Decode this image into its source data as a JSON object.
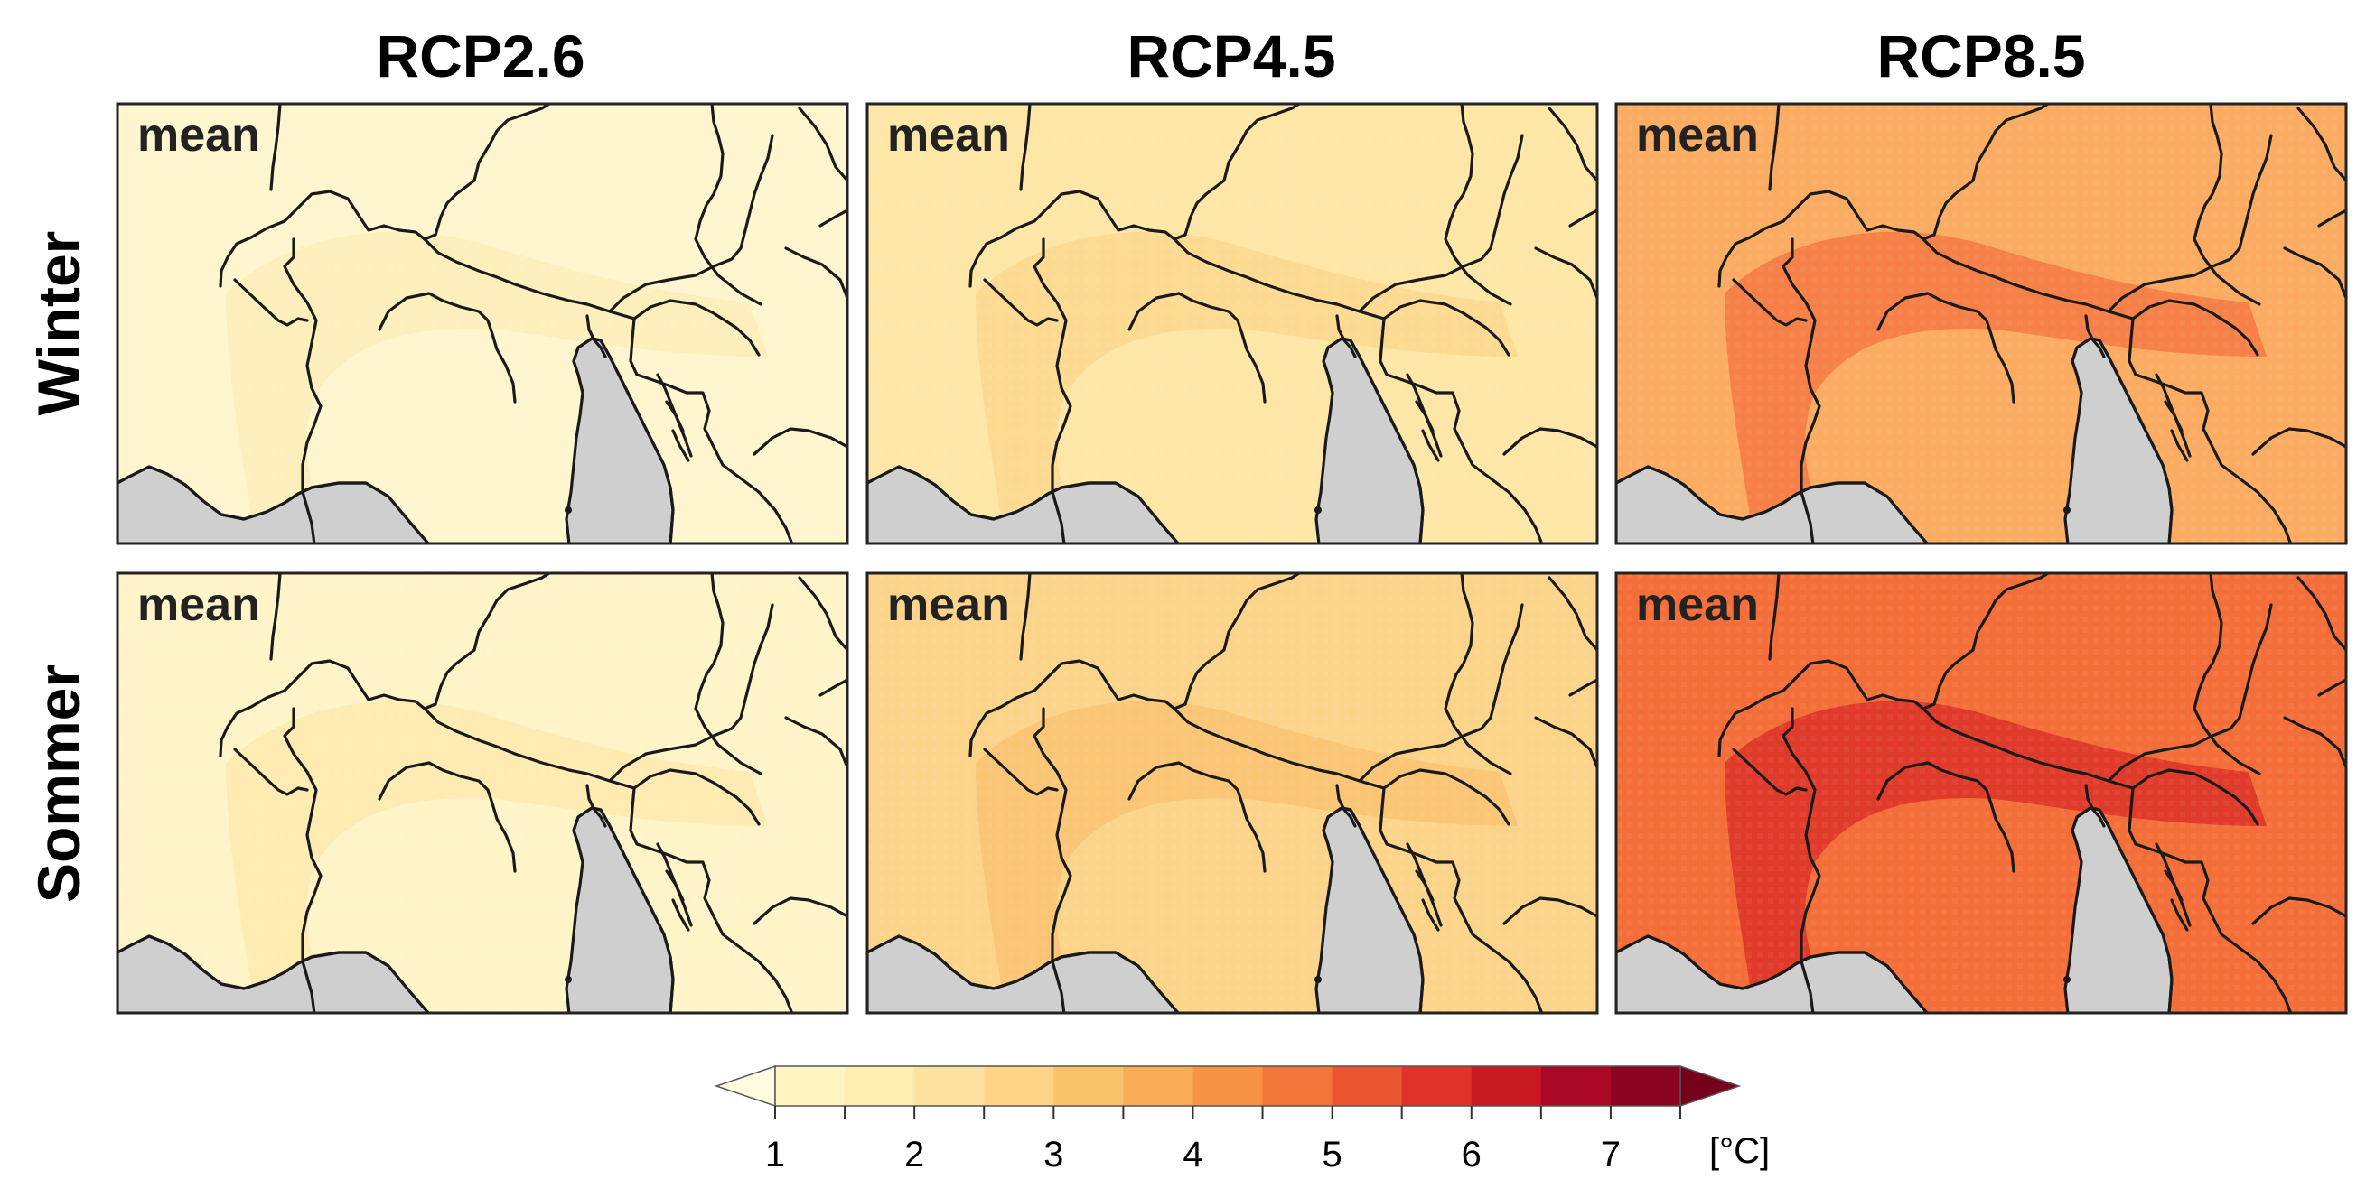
{
  "columns": [
    "RCP2.6",
    "RCP4.5",
    "RCP8.5"
  ],
  "rows": [
    "Winter",
    "Sommer"
  ],
  "panel_label": "mean",
  "colorbar": {
    "ticks": [
      "1",
      "2",
      "3",
      "4",
      "5",
      "6",
      "7"
    ],
    "unit": "[°C]",
    "range": [
      1,
      7.5
    ],
    "step": 0.5,
    "colors": [
      "#fff5c2",
      "#ffecb0",
      "#fde29f",
      "#fdd486",
      "#fbc26c",
      "#f9ab56",
      "#f79246",
      "#f47539",
      "#ed5530",
      "#e1322a",
      "#c81a22",
      "#aa0826",
      "#8b0523"
    ],
    "under_color": "#fffbe0",
    "over_color": "#76001c"
  },
  "panels": [
    {
      "row": "Winter",
      "column": "RCP2.6",
      "base_color": "#fff6cf",
      "warm_color": "#fcecb4"
    },
    {
      "row": "Winter",
      "column": "RCP4.5",
      "base_color": "#fde6a6",
      "warm_color": "#fcd68a"
    },
    {
      "row": "Winter",
      "column": "RCP8.5",
      "base_color": "#fbac62",
      "warm_color": "#f4713f"
    },
    {
      "row": "Sommer",
      "column": "RCP2.6",
      "base_color": "#fff4c8",
      "warm_color": "#fde8ab"
    },
    {
      "row": "Sommer",
      "column": "RCP4.5",
      "base_color": "#fbd48a",
      "warm_color": "#f9c06d"
    },
    {
      "row": "Sommer",
      "column": "RCP8.5",
      "base_color": "#f46e39",
      "warm_color": "#d92a25"
    }
  ]
}
